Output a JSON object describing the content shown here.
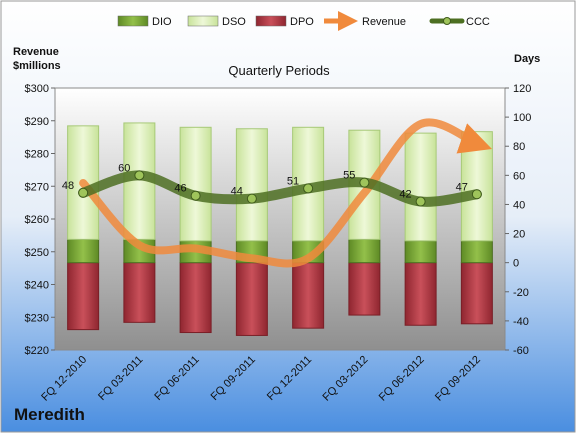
{
  "company": "Meredith",
  "legend": [
    {
      "key": "dio",
      "label": "DIO"
    },
    {
      "key": "dso",
      "label": "DSO"
    },
    {
      "key": "dpo",
      "label": "DPO"
    },
    {
      "key": "revenue",
      "label": "Revenue"
    },
    {
      "key": "ccc",
      "label": "CCC"
    }
  ],
  "colors": {
    "dio": "#7aa834",
    "dso": "#d9eeb4",
    "dpo": "#b3363f",
    "revenue": "#f08a3c",
    "ccc": "#4d6f22"
  },
  "chart_data": {
    "type": "bar",
    "title": "Quarterly Periods",
    "left_axis_label_line1": "Revenue",
    "left_axis_label_line2": "$millions",
    "right_axis_label": "Days",
    "categories": [
      "FQ 12-2010",
      "FQ 03-2011",
      "FQ 06-2011",
      "FQ 09-2011",
      "FQ 12-2011",
      "FQ 03-2012",
      "FQ 06-2012",
      "FQ 09-2012"
    ],
    "left_axis": {
      "min": 220,
      "max": 300,
      "step": 10,
      "prefix": "$"
    },
    "right_axis": {
      "min": -60,
      "max": 120,
      "step": 20
    },
    "series": [
      {
        "name": "DIO",
        "axis": "right",
        "values": [
          16,
          16,
          15,
          15,
          15,
          16,
          15,
          15
        ]
      },
      {
        "name": "DSO",
        "axis": "right",
        "values": [
          78,
          80,
          78,
          77,
          78,
          75,
          74,
          75
        ]
      },
      {
        "name": "DPO",
        "axis": "right",
        "values": [
          -46,
          -41,
          -48,
          -50,
          -45,
          -36,
          -43,
          -42
        ]
      },
      {
        "name": "Revenue",
        "axis": "left",
        "values": [
          271,
          252,
          251,
          248,
          248,
          268,
          289,
          283
        ]
      },
      {
        "name": "CCC",
        "axis": "right",
        "values": [
          48,
          60,
          46,
          44,
          51,
          55,
          42,
          47
        ]
      }
    ],
    "ccc_labels": [
      "48",
      "60",
      "46",
      "44",
      "51",
      "55",
      "42",
      "47"
    ]
  }
}
